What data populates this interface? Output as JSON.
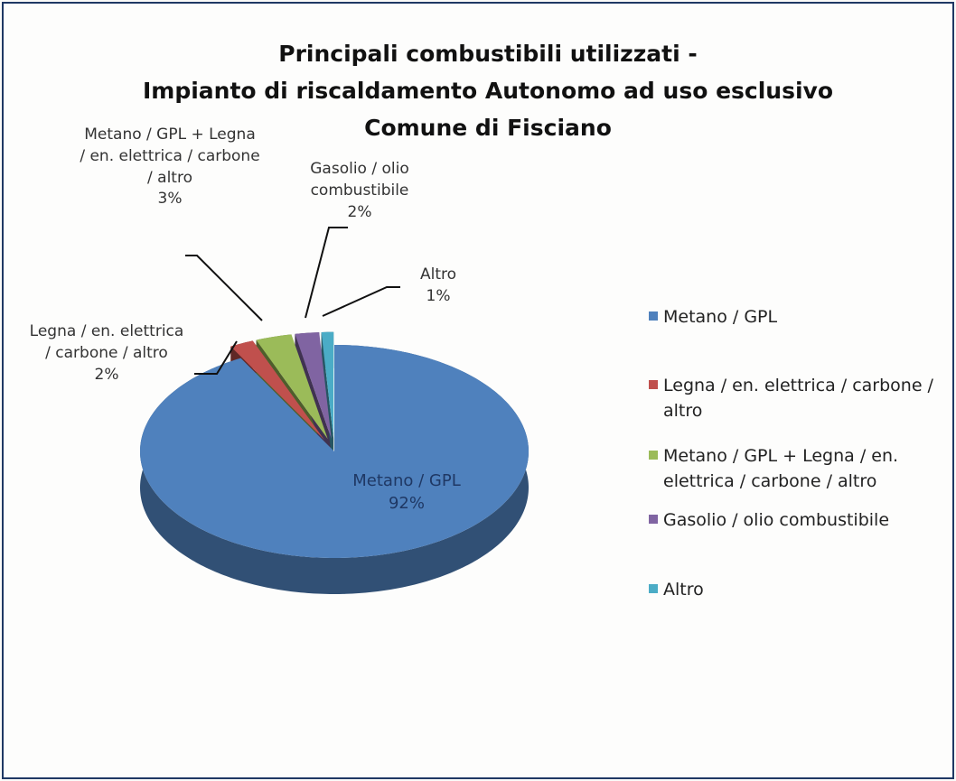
{
  "chart_data": {
    "type": "pie",
    "title": [
      "Principali combustibili utilizzati -",
      "Impianto di riscaldamento Autonomo ad uso esclusivo",
      "Comune di Fisciano"
    ],
    "categories": [
      "Metano / GPL",
      "Legna / en. elettrica / carbone / altro",
      "Metano / GPL + Legna / en. elettrica / carbone / altro",
      "Gasolio / olio combustibile",
      "Altro"
    ],
    "values": [
      92,
      2,
      3,
      2,
      1
    ],
    "value_labels": [
      "92%",
      "2%",
      "3%",
      "2%",
      "1%"
    ],
    "colors": [
      "#4f81bd",
      "#c0504d",
      "#9bbb59",
      "#8064a2",
      "#4bacc6"
    ],
    "legend": "right"
  }
}
